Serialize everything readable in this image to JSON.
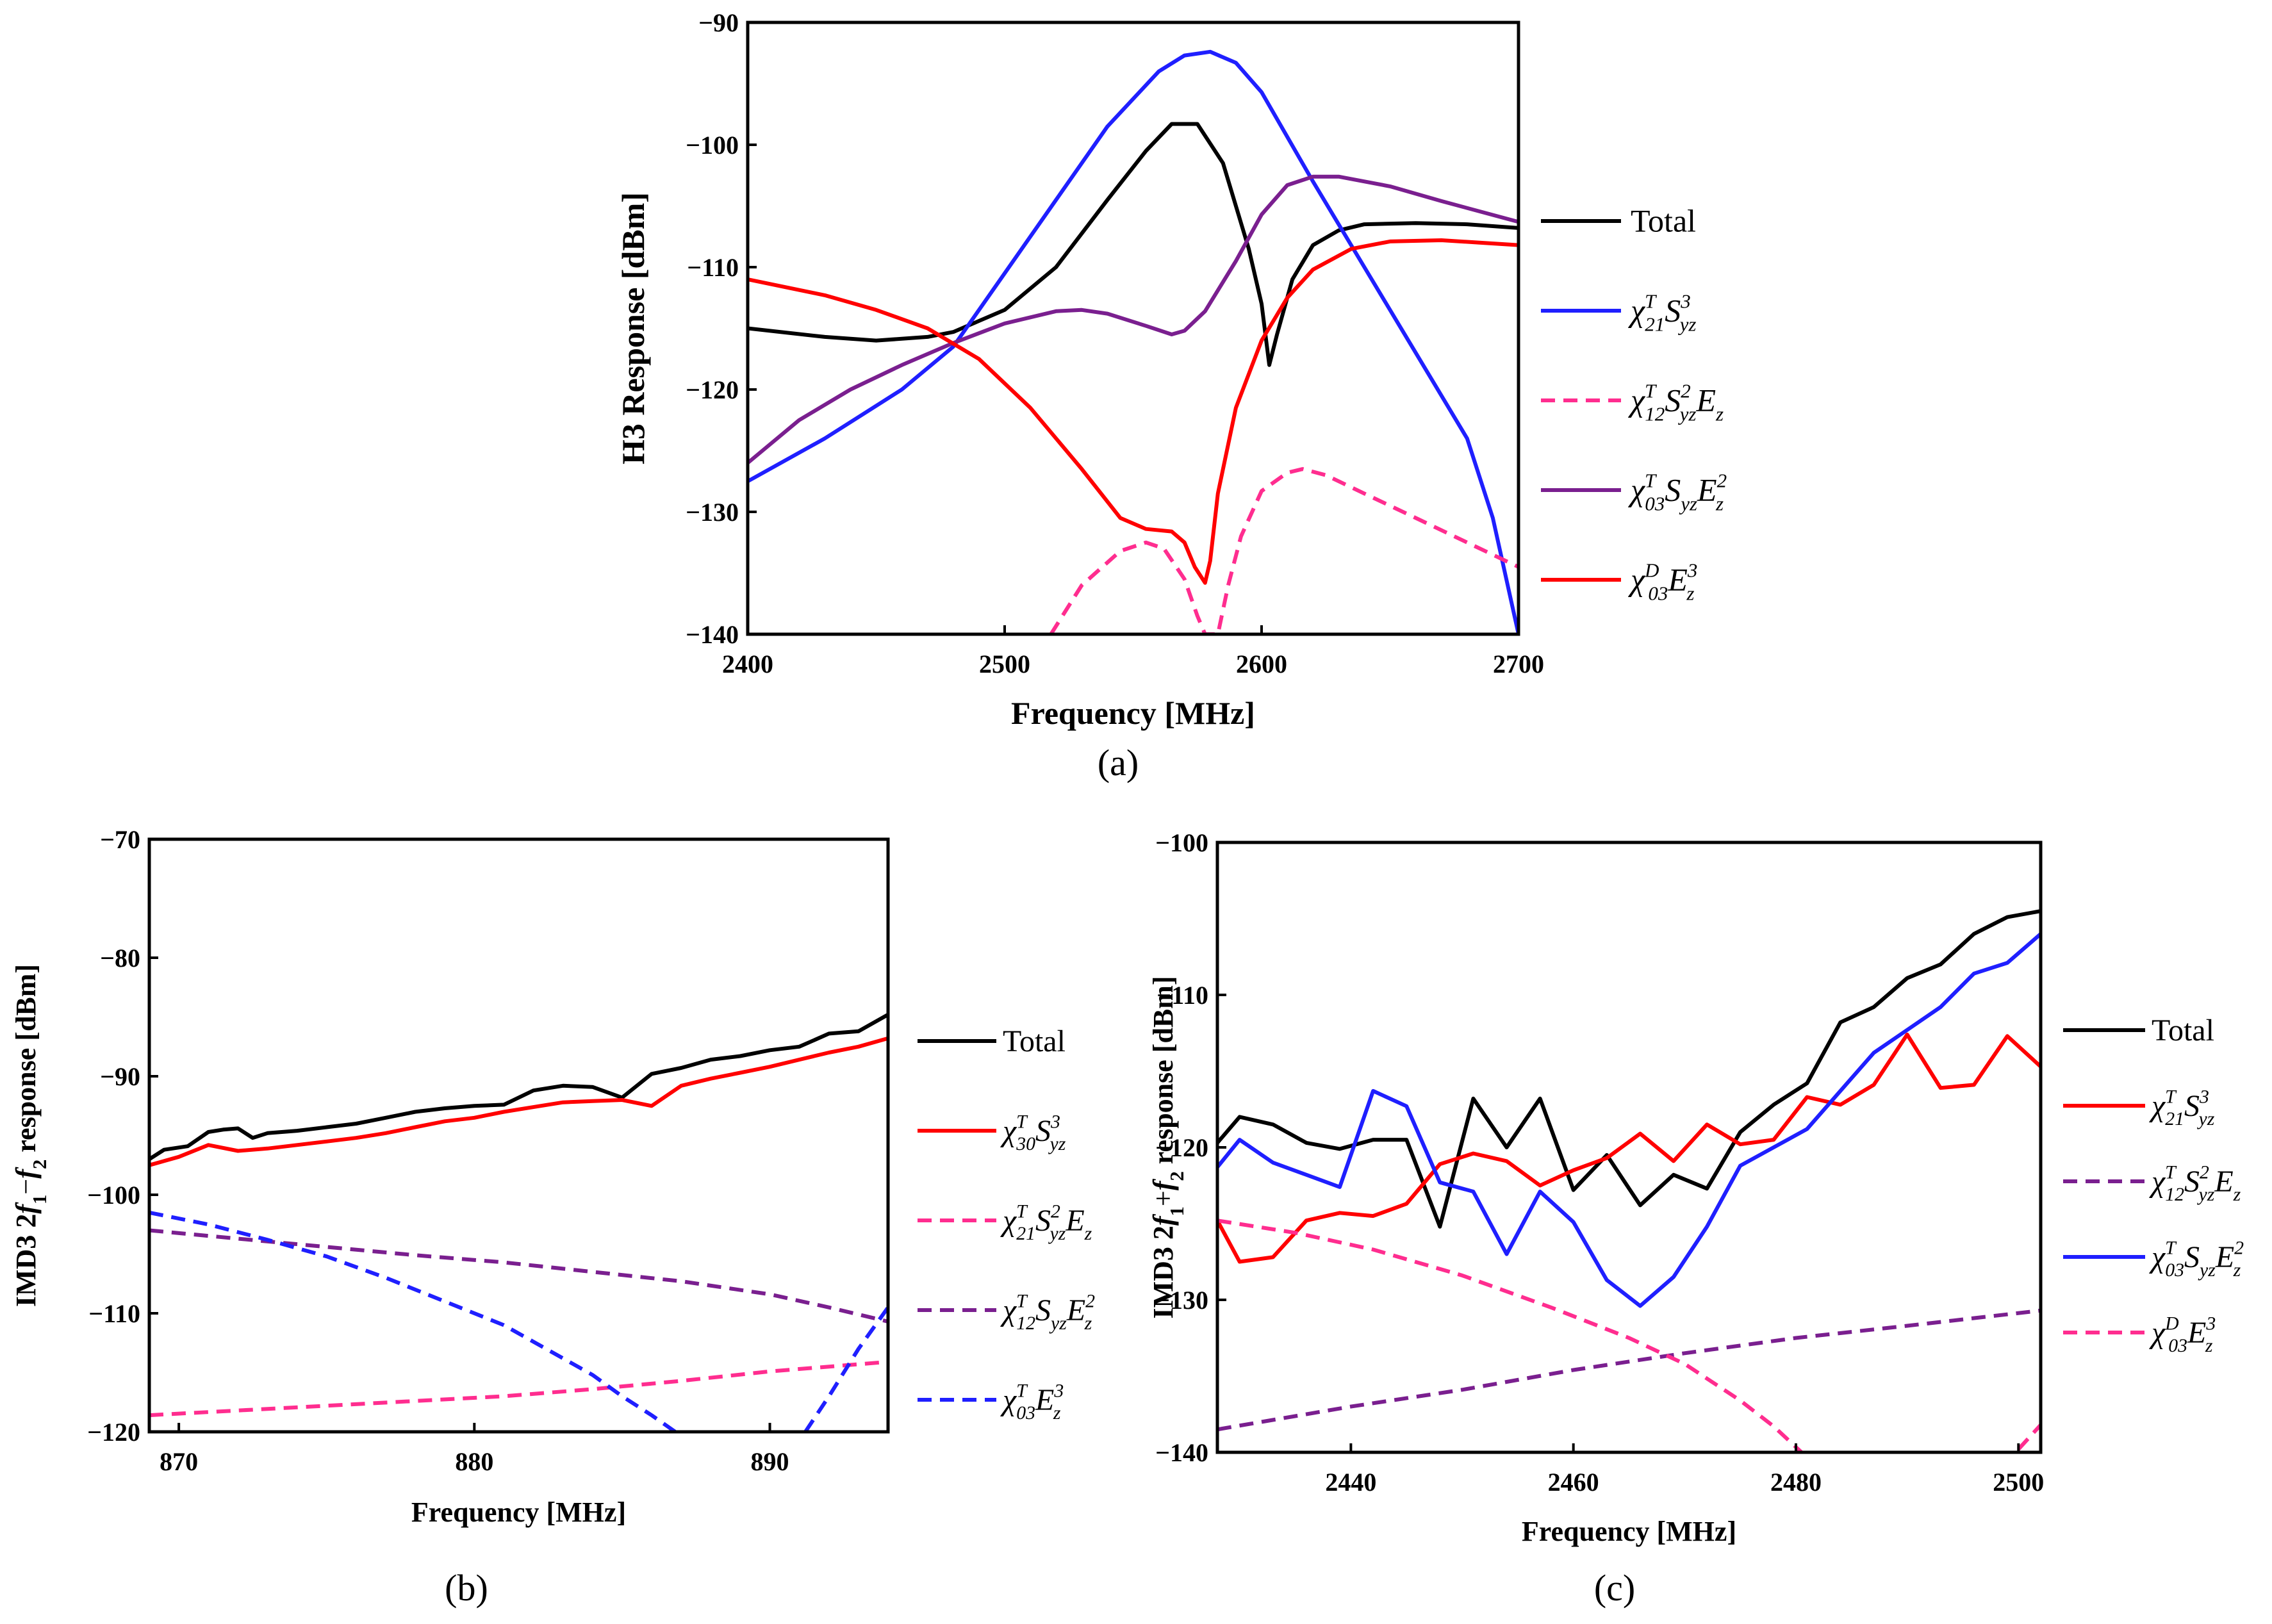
{
  "chart_data": [
    {
      "id": "a",
      "type": "line",
      "panel_label": "(a)",
      "xlabel": "Frequency [MHz]",
      "ylabel": "H3 Response [dBm]",
      "xlim": [
        2400,
        2700
      ],
      "ylim": [
        -140,
        -90
      ],
      "xticks": [
        2400,
        2500,
        2600,
        2700
      ],
      "yticks": [
        -140,
        -130,
        -120,
        -110,
        -100,
        -90
      ],
      "legend_position": "right",
      "series": [
        {
          "name": "Total",
          "color": "#000000",
          "dash": "solid",
          "x": [
            2400,
            2430,
            2450,
            2470,
            2480,
            2500,
            2520,
            2540,
            2555,
            2565,
            2575,
            2585,
            2595,
            2600,
            2603,
            2606,
            2612,
            2620,
            2630,
            2640,
            2660,
            2680,
            2700
          ],
          "y": [
            -115,
            -115.7,
            -116,
            -115.7,
            -115.3,
            -113.5,
            -110,
            -104.5,
            -100.5,
            -98.3,
            -98.3,
            -101.5,
            -108.5,
            -113,
            -118,
            -115.5,
            -111,
            -108.2,
            -107,
            -106.5,
            -106.4,
            -106.5,
            -106.8
          ]
        },
        {
          "name": "χ21T Syz3",
          "color": "#1f1fff",
          "dash": "solid",
          "x": [
            2400,
            2430,
            2460,
            2480,
            2500,
            2520,
            2540,
            2560,
            2570,
            2580,
            2590,
            2600,
            2620,
            2640,
            2660,
            2680,
            2690,
            2700
          ],
          "y": [
            -127.5,
            -124,
            -120,
            -116.5,
            -110.5,
            -104.5,
            -98.5,
            -94,
            -92.7,
            -92.4,
            -93.3,
            -95.7,
            -103,
            -110,
            -117,
            -124,
            -130.5,
            -140
          ]
        },
        {
          "name": "χ12T Syz2 Ez",
          "color": "#ff2d8f",
          "dash": "dashed",
          "x": [
            2518,
            2530,
            2545,
            2555,
            2562,
            2570,
            2575,
            2578,
            2583,
            2587,
            2592,
            2600,
            2610,
            2616,
            2625,
            2640,
            2660,
            2680,
            2700
          ],
          "y": [
            -140,
            -136,
            -133.2,
            -132.5,
            -133,
            -135.5,
            -138.5,
            -140,
            -140,
            -136,
            -132,
            -128.3,
            -126.8,
            -126.5,
            -127,
            -128.5,
            -130.5,
            -132.5,
            -134.5
          ]
        },
        {
          "name": "χ03T Syz Ez2",
          "color": "#7a1f8f",
          "dash": "solid",
          "x": [
            2400,
            2420,
            2440,
            2460,
            2480,
            2500,
            2520,
            2530,
            2540,
            2555,
            2565,
            2570,
            2578,
            2590,
            2600,
            2610,
            2620,
            2630,
            2650,
            2670,
            2700
          ],
          "y": [
            -126,
            -122.5,
            -120,
            -118,
            -116.2,
            -114.6,
            -113.6,
            -113.5,
            -113.8,
            -114.8,
            -115.5,
            -115.2,
            -113.6,
            -109.5,
            -105.7,
            -103.3,
            -102.6,
            -102.6,
            -103.4,
            -104.6,
            -106.3
          ]
        },
        {
          "name": "χ03D Ez3",
          "color": "#ff0000",
          "dash": "solid",
          "x": [
            2400,
            2430,
            2450,
            2470,
            2490,
            2510,
            2530,
            2545,
            2555,
            2565,
            2570,
            2574,
            2578,
            2580,
            2583,
            2590,
            2600,
            2610,
            2620,
            2635,
            2650,
            2670,
            2700
          ],
          "y": [
            -111,
            -112.3,
            -113.5,
            -115,
            -117.5,
            -121.5,
            -126.5,
            -130.5,
            -131.4,
            -131.6,
            -132.5,
            -134.5,
            -135.8,
            -134,
            -128.5,
            -121.5,
            -116,
            -112.5,
            -110.2,
            -108.5,
            -107.9,
            -107.8,
            -108.2
          ]
        }
      ]
    },
    {
      "id": "b",
      "type": "line",
      "panel_label": "(b)",
      "xlabel": "Frequency [MHz]",
      "ylabel_parts": [
        "IMD3 2",
        "f",
        "1",
        "−",
        "f",
        "2",
        " response [dBm]"
      ],
      "xlim": [
        869,
        894
      ],
      "ylim": [
        -120,
        -70
      ],
      "xticks": [
        870,
        880,
        890
      ],
      "yticks": [
        -120,
        -110,
        -100,
        -90,
        -80,
        -70
      ],
      "legend_position": "right",
      "series": [
        {
          "name": "Total",
          "color": "#000000",
          "dash": "solid",
          "x": [
            869,
            869.5,
            870.3,
            871,
            871.5,
            872,
            872.5,
            873,
            874,
            875,
            876,
            877,
            878,
            879,
            880,
            881,
            882,
            883,
            884,
            885,
            886,
            887,
            888,
            889,
            890,
            891,
            892,
            893,
            894
          ],
          "y": [
            -97,
            -96.2,
            -95.9,
            -94.7,
            -94.5,
            -94.4,
            -95.2,
            -94.8,
            -94.6,
            -94.3,
            -94,
            -93.5,
            -93,
            -92.7,
            -92.5,
            -92.4,
            -91.2,
            -90.8,
            -90.9,
            -91.8,
            -89.8,
            -89.3,
            -88.6,
            -88.3,
            -87.8,
            -87.5,
            -86.4,
            -86.2,
            -84.8
          ]
        },
        {
          "name": "χ30T Syz3",
          "color": "#ff0000",
          "dash": "solid",
          "x": [
            869,
            870,
            871,
            872,
            873,
            874,
            875,
            876,
            877,
            878,
            879,
            880,
            881,
            882,
            883,
            884,
            885,
            886,
            887,
            888,
            889,
            890,
            891,
            892,
            893,
            894
          ],
          "y": [
            -97.5,
            -96.8,
            -95.8,
            -96.3,
            -96.1,
            -95.8,
            -95.5,
            -95.2,
            -94.8,
            -94.3,
            -93.8,
            -93.5,
            -93,
            -92.6,
            -92.2,
            -92.1,
            -92,
            -92.5,
            -90.8,
            -90.2,
            -89.7,
            -89.2,
            -88.6,
            -88,
            -87.5,
            -86.8
          ]
        },
        {
          "name": "χ21T Syz2 Ez",
          "color": "#ff2d8f",
          "dash": "dashed",
          "x": [
            869,
            872,
            875,
            878,
            881,
            884,
            887,
            890,
            894
          ],
          "y": [
            -118.6,
            -118.2,
            -117.8,
            -117.4,
            -117,
            -116.4,
            -115.7,
            -114.9,
            -114.1
          ]
        },
        {
          "name": "χ12T Syz Ez2",
          "color": "#7a1f8f",
          "dash": "dashed",
          "x": [
            869,
            872,
            875,
            878,
            881,
            884,
            887,
            890,
            892,
            894
          ],
          "y": [
            -103,
            -103.7,
            -104.4,
            -105.1,
            -105.7,
            -106.5,
            -107.3,
            -108.4,
            -109.5,
            -110.7
          ]
        },
        {
          "name": "χ03T Ez3",
          "color": "#1f1fff",
          "dash": "dashed",
          "x": [
            869,
            871,
            873,
            875,
            877,
            879,
            881,
            883,
            884,
            885,
            886,
            886.8
          ],
          "y": [
            -101.5,
            -102.5,
            -103.8,
            -105.2,
            -107,
            -109,
            -111,
            -113.8,
            -115.2,
            -117,
            -118.6,
            -120
          ]
        },
        {
          "name": "χ03T Ez3 (b)",
          "color": "#1f1fff",
          "dash": "dashed",
          "x": [
            891.2,
            892,
            893,
            894
          ],
          "y": [
            -120,
            -117,
            -113,
            -109.5
          ]
        }
      ]
    },
    {
      "id": "c",
      "type": "line",
      "panel_label": "(c)",
      "xlabel": "Frequency [MHz]",
      "ylabel_parts": [
        "IMD3 2",
        "f",
        "1",
        "+",
        "f",
        "2",
        " response [dBm]"
      ],
      "xlim": [
        2428,
        2502
      ],
      "ylim": [
        -140,
        -100
      ],
      "xticks": [
        2440,
        2460,
        2480,
        2500
      ],
      "yticks": [
        -140,
        -130,
        -120,
        -110,
        -100
      ],
      "legend_position": "right",
      "series": [
        {
          "name": "Total",
          "color": "#000000",
          "dash": "solid",
          "x": [
            2428,
            2430,
            2433,
            2436,
            2439,
            2442,
            2445,
            2448,
            2451,
            2454,
            2457,
            2460,
            2463,
            2466,
            2469,
            2472,
            2475,
            2478,
            2481,
            2484,
            2487,
            2490,
            2493,
            2496,
            2499,
            2502
          ],
          "y": [
            -119.7,
            -118,
            -118.5,
            -119.7,
            -120.1,
            -119.5,
            -119.5,
            -125.2,
            -116.8,
            -120,
            -116.8,
            -122.8,
            -120.5,
            -123.8,
            -121.8,
            -122.7,
            -119,
            -117.2,
            -115.8,
            -111.8,
            -110.8,
            -108.9,
            -108,
            -106,
            -104.9,
            -104.5
          ]
        },
        {
          "name": "χ21T Syz3",
          "color": "#ff0000",
          "dash": "solid",
          "x": [
            2428,
            2430,
            2433,
            2436,
            2439,
            2442,
            2445,
            2448,
            2451,
            2454,
            2457,
            2460,
            2463,
            2466,
            2469,
            2472,
            2475,
            2478,
            2481,
            2484,
            2487,
            2490,
            2493,
            2496,
            2499,
            2502
          ],
          "y": [
            -124.8,
            -127.5,
            -127.2,
            -124.8,
            -124.3,
            -124.5,
            -123.7,
            -121.1,
            -120.4,
            -120.9,
            -122.5,
            -121.5,
            -120.7,
            -119.1,
            -120.9,
            -118.5,
            -119.8,
            -119.5,
            -116.7,
            -117.2,
            -115.9,
            -112.6,
            -116.1,
            -115.9,
            -112.7,
            -114.7
          ]
        },
        {
          "name": "χ12T Syz2 Ez",
          "color": "#7a1f8f",
          "dash": "dashed",
          "x": [
            2428,
            2440,
            2450,
            2460,
            2470,
            2480,
            2490,
            2502
          ],
          "y": [
            -138.5,
            -137,
            -135.9,
            -134.6,
            -133.5,
            -132.5,
            -131.7,
            -130.7
          ]
        },
        {
          "name": "χ03T Syz Ez2",
          "color": "#1f1fff",
          "dash": "solid",
          "x": [
            2428,
            2430,
            2433,
            2436,
            2439,
            2442,
            2445,
            2448,
            2451,
            2454,
            2457,
            2460,
            2463,
            2466,
            2469,
            2472,
            2475,
            2478,
            2481,
            2484,
            2487,
            2490,
            2493,
            2496,
            2499,
            2502
          ],
          "y": [
            -121.3,
            -119.5,
            -121,
            -121.8,
            -122.6,
            -116.3,
            -117.3,
            -122.3,
            -122.9,
            -127,
            -122.9,
            -124.9,
            -128.7,
            -130.4,
            -128.5,
            -125.2,
            -121.2,
            -120,
            -118.8,
            -116.3,
            -113.8,
            -112.3,
            -110.8,
            -108.6,
            -107.9,
            -106
          ]
        },
        {
          "name": "χ03D Ez3",
          "color": "#ff2d8f",
          "dash": "dashed",
          "x": [
            2428,
            2435,
            2442,
            2450,
            2458,
            2465,
            2470,
            2475,
            2478,
            2480.5
          ],
          "y": [
            -124.8,
            -125.6,
            -126.7,
            -128.4,
            -130.5,
            -132.5,
            -134.2,
            -136.6,
            -138.3,
            -140
          ]
        },
        {
          "name": "χ03D Ez3 (b)",
          "color": "#ff2d8f",
          "dash": "dashed",
          "x": [
            2500,
            2502
          ],
          "y": [
            -139.8,
            -138.2
          ]
        }
      ]
    }
  ],
  "legends": {
    "a": [
      {
        "label": "Total",
        "color": "#000000",
        "dash": "solid"
      },
      {
        "base": "χ",
        "sub": "21",
        "sup": "T",
        "rest": [
          {
            "t": "S",
            "sub": "yz",
            "sup": "3"
          }
        ],
        "color": "#1f1fff",
        "dash": "solid"
      },
      {
        "base": "χ",
        "sub": "12",
        "sup": "T",
        "rest": [
          {
            "t": "S",
            "sub": "yz",
            "sup": "2"
          },
          {
            "t": "E",
            "sub": "z",
            "sup": ""
          }
        ],
        "color": "#ff2d8f",
        "dash": "dashed"
      },
      {
        "base": "χ",
        "sub": "03",
        "sup": "T",
        "rest": [
          {
            "t": "S",
            "sub": "yz",
            "sup": ""
          },
          {
            "t": "E",
            "sub": "z",
            "sup": "2"
          }
        ],
        "color": "#7a1f8f",
        "dash": "solid"
      },
      {
        "base": "χ",
        "sub": "03",
        "sup": "D",
        "rest": [
          {
            "t": "E",
            "sub": "z",
            "sup": "3"
          }
        ],
        "color": "#ff0000",
        "dash": "solid"
      }
    ],
    "b": [
      {
        "label": "Total",
        "color": "#000000",
        "dash": "solid"
      },
      {
        "base": "χ",
        "sub": "30",
        "sup": "T",
        "rest": [
          {
            "t": "S",
            "sub": "yz",
            "sup": "3"
          }
        ],
        "color": "#ff0000",
        "dash": "solid"
      },
      {
        "base": "χ",
        "sub": "21",
        "sup": "T",
        "rest": [
          {
            "t": "S",
            "sub": "yz",
            "sup": "2"
          },
          {
            "t": "E",
            "sub": "z",
            "sup": ""
          }
        ],
        "color": "#ff2d8f",
        "dash": "dashed"
      },
      {
        "base": "χ",
        "sub": "12",
        "sup": "T",
        "rest": [
          {
            "t": "S",
            "sub": "yz",
            "sup": ""
          },
          {
            "t": "E",
            "sub": "z",
            "sup": "2"
          }
        ],
        "color": "#7a1f8f",
        "dash": "dashed"
      },
      {
        "base": "χ",
        "sub": "03",
        "sup": "T",
        "rest": [
          {
            "t": "E",
            "sub": "z",
            "sup": "3"
          }
        ],
        "color": "#1f1fff",
        "dash": "dashed"
      }
    ],
    "c": [
      {
        "label": "Total",
        "color": "#000000",
        "dash": "solid"
      },
      {
        "base": "χ",
        "sub": "21",
        "sup": "T",
        "rest": [
          {
            "t": "S",
            "sub": "yz",
            "sup": "3"
          }
        ],
        "color": "#ff0000",
        "dash": "solid"
      },
      {
        "base": "χ",
        "sub": "12",
        "sup": "T",
        "rest": [
          {
            "t": "S",
            "sub": "yz",
            "sup": "2"
          },
          {
            "t": "E",
            "sub": "z",
            "sup": ""
          }
        ],
        "color": "#7a1f8f",
        "dash": "dashed"
      },
      {
        "base": "χ",
        "sub": "03",
        "sup": "T",
        "rest": [
          {
            "t": "S",
            "sub": "yz",
            "sup": ""
          },
          {
            "t": "E",
            "sub": "z",
            "sup": "2"
          }
        ],
        "color": "#1f1fff",
        "dash": "solid"
      },
      {
        "base": "χ",
        "sub": "03",
        "sup": "D",
        "rest": [
          {
            "t": "E",
            "sub": "z",
            "sup": "3"
          }
        ],
        "color": "#ff2d8f",
        "dash": "dashed"
      }
    ]
  }
}
